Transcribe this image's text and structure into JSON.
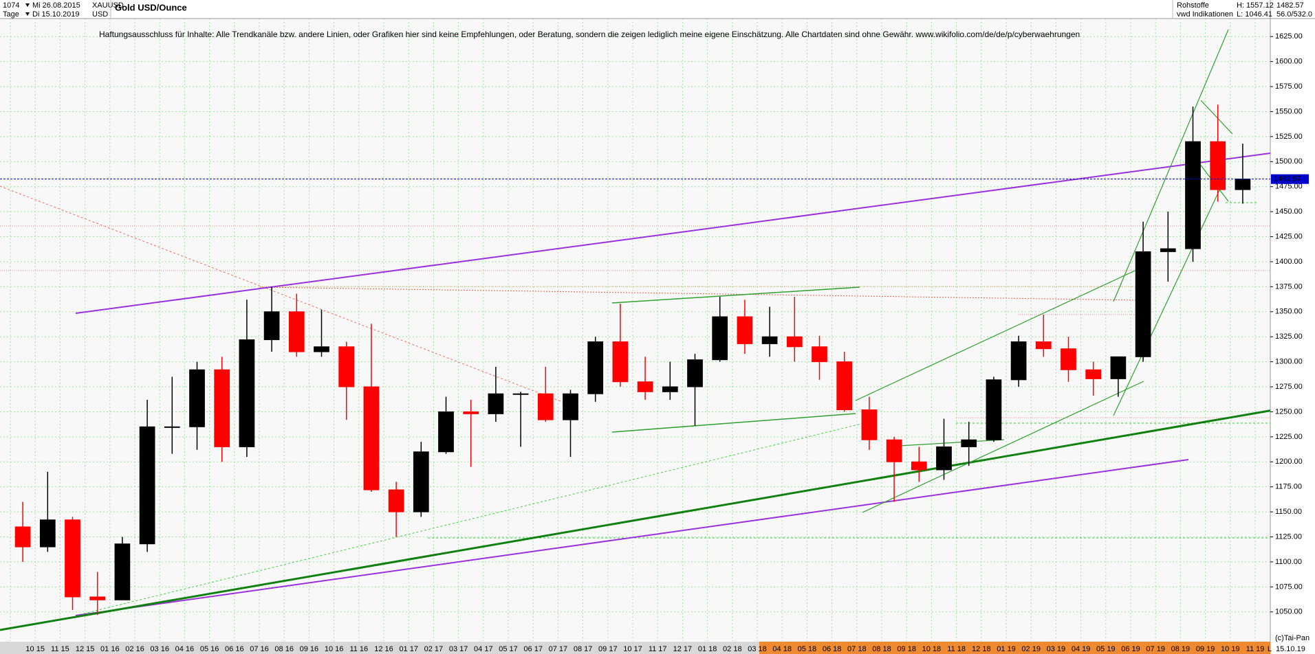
{
  "header": {
    "count": "1074",
    "period": "Tage",
    "start_date": "Mi 26.08.2015",
    "end_date": "Di 15.10.2019",
    "symbol": "XAUUSD",
    "currency": "USD",
    "market": "Rohstoffe",
    "source": "vwd Indikationen",
    "high": "H: 1557.12",
    "low": "L: 1046.41",
    "last": "1482.57",
    "ratio": "56.0/532.0"
  },
  "chart_data": {
    "type": "candlestick",
    "title": "Gold USD/Ounce",
    "annotation": "Haftungsausschluss für Inhalte: Alle Trendkanäle bzw. andere Linien, oder Grafiken hier sind keine Empfehlungen, oder Beratung, sondern die zeigen lediglich meine eigene Einschätzung. Alle Chartdaten sind ohne Gewähr.  www.wikifolio.com/de/de/p/cyberwaehrungen",
    "categories": [
      null,
      "10 15",
      "11 15",
      "12 15",
      "01 16",
      "02 16",
      "03 16",
      "04 16",
      "05 16",
      "06 16",
      "07 16",
      "08 16",
      "09 16",
      "10 16",
      "11 16",
      "12 16",
      "01 17",
      "02 17",
      "03 17",
      "04 17",
      "05 17",
      "06 17",
      "07 17",
      "08 17",
      "09 17",
      "10 17",
      "11 17",
      "12 17",
      "01 18",
      "02 18",
      "03 18",
      "04 18",
      "05 18",
      "06 18",
      "07 18",
      "08 18",
      "09 18",
      "10 18",
      "11 18",
      "12 18",
      "01 19",
      "02 19",
      "03 19",
      "04 19",
      "05 19",
      "06 19",
      "07 19",
      "08 19",
      "09 19",
      "10 19",
      "11 19"
    ],
    "open": [
      1135,
      1115,
      1142,
      1065,
      1062,
      1118,
      1235,
      1235,
      1292,
      1215,
      1322,
      1350,
      1310,
      1315,
      1275,
      1172,
      1150,
      1210,
      1250,
      1248,
      1268,
      1268,
      1242,
      1268,
      1320,
      1280,
      1270,
      1275,
      1302,
      1345,
      1318,
      1325,
      1315,
      1300,
      1252,
      1222,
      1200,
      1192,
      1215,
      1222,
      1282,
      1320,
      1313,
      1292,
      1283,
      1305,
      1410,
      1413,
      1520,
      1472,
      null
    ],
    "high": [
      1160,
      1190,
      1145,
      1090,
      1125,
      1262,
      1285,
      1300,
      1305,
      1362,
      1375,
      1368,
      1352,
      1320,
      1338,
      1180,
      1220,
      1265,
      1262,
      1295,
      1270,
      1295,
      1272,
      1325,
      1358,
      1305,
      1300,
      1308,
      1365,
      1362,
      1355,
      1365,
      1326,
      1310,
      1265,
      1225,
      1215,
      1243,
      1240,
      1285,
      1326,
      1347,
      1325,
      1300,
      1305,
      1440,
      1450,
      1555,
      1557,
      1518,
      null
    ],
    "low": [
      1100,
      1110,
      1052,
      1047,
      1062,
      1110,
      1208,
      1212,
      1200,
      1205,
      1310,
      1305,
      1305,
      1242,
      1170,
      1125,
      1145,
      1208,
      1195,
      1240,
      1215,
      1240,
      1205,
      1260,
      1275,
      1262,
      1262,
      1236,
      1300,
      1308,
      1305,
      1300,
      1282,
      1250,
      1212,
      1160,
      1180,
      1182,
      1196,
      1220,
      1275,
      1305,
      1280,
      1266,
      1265,
      1300,
      1380,
      1400,
      1460,
      1458,
      null
    ],
    "close": [
      1115,
      1142,
      1065,
      1062,
      1118,
      1235,
      1235,
      1292,
      1215,
      1322,
      1350,
      1310,
      1315,
      1275,
      1172,
      1150,
      1210,
      1250,
      1248,
      1268,
      1268,
      1242,
      1268,
      1320,
      1280,
      1270,
      1275,
      1302,
      1345,
      1318,
      1325,
      1315,
      1300,
      1252,
      1222,
      1200,
      1192,
      1215,
      1222,
      1282,
      1320,
      1313,
      1292,
      1283,
      1305,
      1410,
      1413,
      1520,
      1472,
      1482.57,
      null
    ],
    "up_color": "#000000",
    "down_color": "#ff0000",
    "ylim": [
      1021,
      1643
    ],
    "yticks": [
      {
        "value": 1050,
        "label": "1050.00"
      },
      {
        "value": 1075,
        "label": "1075.00"
      },
      {
        "value": 1100,
        "label": "1100.00"
      },
      {
        "value": 1125,
        "label": "1125.00"
      },
      {
        "value": 1150,
        "label": "1150.00"
      },
      {
        "value": 1175,
        "label": "1175.00"
      },
      {
        "value": 1200,
        "label": "1200.00"
      },
      {
        "value": 1225,
        "label": "1225.00"
      },
      {
        "value": 1250,
        "label": "1250.00"
      },
      {
        "value": 1275,
        "label": "1275.00"
      },
      {
        "value": 1300,
        "label": "1300.00"
      },
      {
        "value": 1325,
        "label": "1325.00"
      },
      {
        "value": 1350,
        "label": "1350.00"
      },
      {
        "value": 1375,
        "label": "1375.00"
      },
      {
        "value": 1400,
        "label": "1400.00"
      },
      {
        "value": 1425,
        "label": "1425.00"
      },
      {
        "value": 1450,
        "label": "1450.00"
      },
      {
        "value": 1475,
        "label": "1475.00"
      },
      {
        "value": 1500,
        "label": "1500.00"
      },
      {
        "value": 1525,
        "label": "1525.00"
      },
      {
        "value": 1550,
        "label": "1550.00"
      },
      {
        "value": 1575,
        "label": "1575.00"
      },
      {
        "value": 1600,
        "label": "1600.00"
      },
      {
        "value": 1625,
        "label": "1625.00"
      }
    ],
    "grid": true,
    "last_price": 1482.57,
    "last_price_color": "#0000cc"
  },
  "footer": {
    "copyright": "(c)Tai-Pan",
    "date": "15.10.19",
    "scale_mode": "L"
  }
}
